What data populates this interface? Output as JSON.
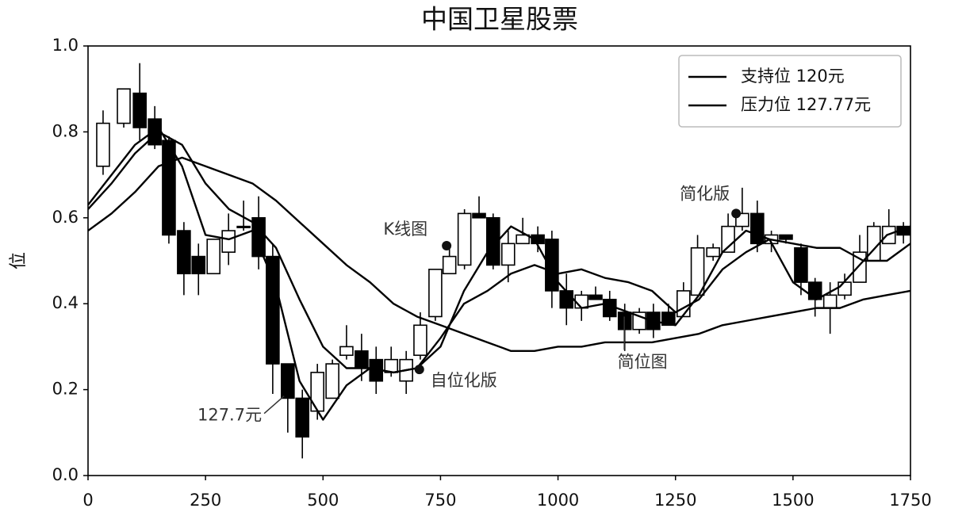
{
  "chart_data": {
    "type": "candlestick",
    "title": "中国卫星股票",
    "ylabel": "位",
    "xlim": [
      0,
      1750
    ],
    "ylim": [
      0,
      1
    ],
    "xticks": [
      0,
      250,
      500,
      750,
      1000,
      1250,
      1500,
      1750
    ],
    "yticks": [
      {
        "value": 0,
        "label": "0.0"
      },
      0.2,
      0.4,
      0.6,
      0.8,
      {
        "value": 1,
        "label": "1.0"
      }
    ],
    "up_color": "#ffffff",
    "down_color": "#000000",
    "legend": "upper right",
    "x": [
      32,
      76,
      110,
      142,
      172,
      204,
      235,
      267,
      299,
      331,
      363,
      393,
      425,
      456,
      488,
      520,
      550,
      582,
      613,
      645,
      677,
      707,
      739,
      769,
      801,
      832,
      862,
      894,
      925,
      957,
      987,
      1018,
      1050,
      1080,
      1110,
      1142,
      1173,
      1203,
      1235,
      1267,
      1297,
      1330,
      1362,
      1392,
      1424,
      1454,
      1485,
      1517,
      1547,
      1579,
      1610,
      1642,
      1672,
      1704,
      1735
    ],
    "open": [
      0.72,
      0.82,
      0.89,
      0.83,
      0.78,
      0.57,
      0.51,
      0.47,
      0.52,
      0.58,
      0.6,
      0.51,
      0.26,
      0.18,
      0.15,
      0.18,
      0.28,
      0.29,
      0.27,
      0.24,
      0.22,
      0.28,
      0.37,
      0.47,
      0.49,
      0.61,
      0.6,
      0.49,
      0.54,
      0.56,
      0.55,
      0.43,
      0.39,
      0.42,
      0.41,
      0.38,
      0.34,
      0.38,
      0.38,
      0.37,
      0.42,
      0.51,
      0.52,
      0.58,
      0.61,
      0.54,
      0.56,
      0.53,
      0.45,
      0.39,
      0.42,
      0.45,
      0.5,
      0.54,
      0.58
    ],
    "high": [
      0.85,
      0.9,
      0.96,
      0.86,
      0.79,
      0.59,
      0.54,
      0.55,
      0.61,
      0.64,
      0.65,
      0.54,
      0.26,
      0.2,
      0.26,
      0.27,
      0.35,
      0.33,
      0.3,
      0.3,
      0.29,
      0.38,
      0.48,
      0.54,
      0.62,
      0.65,
      0.61,
      0.57,
      0.6,
      0.58,
      0.57,
      0.47,
      0.43,
      0.44,
      0.43,
      0.4,
      0.39,
      0.4,
      0.4,
      0.45,
      0.56,
      0.54,
      0.61,
      0.67,
      0.64,
      0.57,
      0.56,
      0.54,
      0.46,
      0.45,
      0.47,
      0.56,
      0.59,
      0.62,
      0.59
    ],
    "low": [
      0.7,
      0.81,
      0.78,
      0.76,
      0.54,
      0.42,
      0.42,
      0.47,
      0.49,
      0.57,
      0.48,
      0.19,
      0.1,
      0.04,
      0.13,
      0.18,
      0.27,
      0.22,
      0.19,
      0.23,
      0.19,
      0.27,
      0.36,
      0.47,
      0.48,
      0.6,
      0.48,
      0.45,
      0.54,
      0.52,
      0.39,
      0.35,
      0.36,
      0.41,
      0.36,
      0.29,
      0.33,
      0.32,
      0.35,
      0.37,
      0.42,
      0.5,
      0.52,
      0.57,
      0.52,
      0.52,
      0.54,
      0.42,
      0.37,
      0.33,
      0.41,
      0.45,
      0.5,
      0.54,
      0.54
    ],
    "close": [
      0.82,
      0.9,
      0.81,
      0.77,
      0.56,
      0.47,
      0.47,
      0.55,
      0.57,
      0.58,
      0.51,
      0.26,
      0.18,
      0.09,
      0.24,
      0.26,
      0.3,
      0.25,
      0.22,
      0.27,
      0.27,
      0.35,
      0.48,
      0.51,
      0.61,
      0.6,
      0.49,
      0.54,
      0.56,
      0.54,
      0.43,
      0.39,
      0.42,
      0.41,
      0.37,
      0.34,
      0.38,
      0.34,
      0.35,
      0.43,
      0.53,
      0.53,
      0.58,
      0.61,
      0.54,
      0.56,
      0.55,
      0.45,
      0.41,
      0.42,
      0.45,
      0.52,
      0.58,
      0.58,
      0.56
    ],
    "series": [
      {
        "name": "支持位 120元",
        "color": "#000000",
        "x": [
          0,
          50,
          100,
          150,
          200,
          250,
          300,
          350,
          400,
          450,
          500,
          550,
          600,
          650,
          700,
          750,
          800,
          850,
          900,
          950,
          1000,
          1050,
          1100,
          1150,
          1200,
          1250,
          1300,
          1350,
          1400,
          1450,
          1500,
          1550,
          1600,
          1650,
          1700,
          1750
        ],
        "values": [
          0.63,
          0.7,
          0.77,
          0.81,
          0.72,
          0.56,
          0.55,
          0.57,
          0.44,
          0.22,
          0.13,
          0.21,
          0.25,
          0.24,
          0.25,
          0.3,
          0.43,
          0.52,
          0.58,
          0.55,
          0.45,
          0.39,
          0.4,
          0.38,
          0.36,
          0.35,
          0.42,
          0.52,
          0.57,
          0.55,
          0.45,
          0.41,
          0.44,
          0.5,
          0.56,
          0.58
        ]
      },
      {
        "name": "压力位 127.77元",
        "color": "#000000",
        "x": [
          0,
          50,
          100,
          150,
          200,
          250,
          300,
          350,
          400,
          450,
          500,
          550,
          600,
          650,
          700,
          750,
          800,
          850,
          900,
          950,
          1000,
          1050,
          1100,
          1150,
          1200,
          1250,
          1300,
          1350,
          1400,
          1450,
          1500,
          1550,
          1600,
          1650,
          1700,
          1750
        ],
        "values": [
          0.62,
          0.68,
          0.75,
          0.8,
          0.77,
          0.68,
          0.62,
          0.59,
          0.53,
          0.41,
          0.3,
          0.25,
          0.25,
          0.24,
          0.25,
          0.32,
          0.4,
          0.43,
          0.47,
          0.49,
          0.47,
          0.48,
          0.46,
          0.45,
          0.43,
          0.38,
          0.41,
          0.48,
          0.52,
          0.55,
          0.54,
          0.53,
          0.53,
          0.5,
          0.5,
          0.54
        ]
      },
      {
        "color": "#000000",
        "x": [
          0,
          50,
          100,
          150,
          200,
          250,
          300,
          350,
          400,
          450,
          500,
          550,
          600,
          650,
          700,
          750,
          800,
          850,
          900,
          950,
          1000,
          1050,
          1100,
          1150,
          1200,
          1250,
          1300,
          1350,
          1400,
          1450,
          1500,
          1550,
          1600,
          1650,
          1700,
          1750
        ],
        "values": [
          0.57,
          0.61,
          0.66,
          0.72,
          0.74,
          0.72,
          0.7,
          0.68,
          0.64,
          0.59,
          0.54,
          0.49,
          0.45,
          0.4,
          0.37,
          0.35,
          0.33,
          0.31,
          0.29,
          0.29,
          0.3,
          0.3,
          0.31,
          0.31,
          0.31,
          0.32,
          0.33,
          0.35,
          0.36,
          0.37,
          0.38,
          0.39,
          0.39,
          0.41,
          0.42,
          0.43
        ]
      }
    ],
    "annotations": [
      {
        "text": "K线图",
        "x": 763,
        "y": 0.535,
        "marker": true
      },
      {
        "text": "自位化版",
        "x": 705,
        "y": 0.247,
        "marker": true
      },
      {
        "text": "127.7元",
        "x": 417,
        "y": 0.185,
        "marker": false
      },
      {
        "text": "简位图",
        "x": 1141,
        "y": 0.37,
        "marker": false
      },
      {
        "text": "简化版",
        "x": 1379,
        "y": 0.61,
        "marker": true
      }
    ]
  }
}
